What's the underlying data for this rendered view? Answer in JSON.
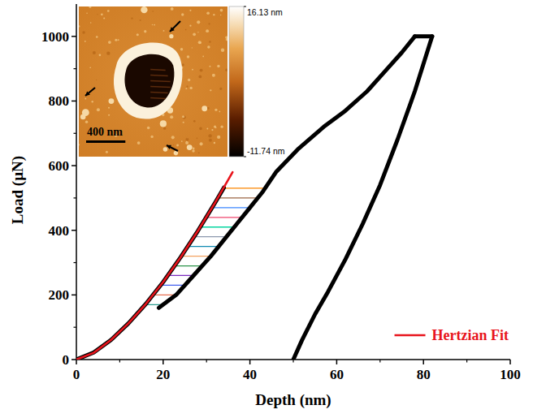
{
  "chart_data": {
    "type": "line",
    "x_label": "Depth (nm)",
    "y_label": "Load (µN)",
    "xlim": [
      0,
      100
    ],
    "xticks": [
      0,
      20,
      40,
      60,
      80,
      100
    ],
    "ylim": [
      0,
      1100
    ],
    "yticks": [
      0,
      200,
      400,
      600,
      800,
      1000
    ],
    "grid": false,
    "legend": "lower right",
    "series": [
      {
        "x": [
          0,
          4,
          8,
          12,
          16,
          20,
          24,
          28,
          32,
          34
        ],
        "values": [
          0,
          22,
          61,
          112,
          172,
          240,
          316,
          398,
          486,
          532
        ],
        "color": "#000000",
        "line_style": "solid"
      },
      {
        "x": [
          19,
          23,
          27,
          31,
          34,
          37,
          40,
          43,
          46,
          51,
          57,
          62,
          67,
          71,
          75,
          78
        ],
        "values": [
          160,
          200,
          260,
          320,
          370,
          420,
          470,
          520,
          580,
          650,
          720,
          770,
          830,
          890,
          950,
          1000
        ],
        "color": "#000000",
        "line_style": "solid"
      },
      {
        "x": [
          78,
          80,
          82
        ],
        "values": [
          1000,
          1000,
          1000
        ],
        "color": "#000000",
        "line_style": "solid"
      },
      {
        "x": [
          82,
          78,
          74,
          70,
          66,
          62,
          58,
          55,
          52,
          50
        ],
        "values": [
          1000,
          830,
          680,
          540,
          420,
          310,
          210,
          140,
          60,
          0
        ],
        "color": "#000000",
        "line_style": "solid"
      },
      {
        "name": "Hertzian Fit",
        "x": [
          0,
          4,
          8,
          12,
          16,
          20,
          24,
          28,
          32,
          36
        ],
        "values": [
          0,
          21,
          61,
          112,
          172,
          240,
          316,
          398,
          486,
          580
        ],
        "color": "#e8141c",
        "line_style": "solid"
      },
      {
        "x": [
          15.9,
          20
        ],
        "values": [
          170,
          170
        ],
        "color": "#2a9d8f",
        "line_style": "solid"
      },
      {
        "x": [
          17.7,
          23
        ],
        "values": [
          200,
          200
        ],
        "color": "#e76f51",
        "line_style": "solid"
      },
      {
        "x": [
          19.4,
          25
        ],
        "values": [
          230,
          230
        ],
        "color": "#4361ee",
        "line_style": "solid"
      },
      {
        "x": [
          21.1,
          27
        ],
        "values": [
          260,
          260
        ],
        "color": "#7b2cbf",
        "line_style": "solid"
      },
      {
        "x": [
          22.7,
          29
        ],
        "values": [
          290,
          290
        ],
        "color": "#2b9348",
        "line_style": "solid"
      },
      {
        "x": [
          24.3,
          31
        ],
        "values": [
          320,
          320
        ],
        "color": "#f4a261",
        "line_style": "solid"
      },
      {
        "x": [
          25.7,
          32.8
        ],
        "values": [
          350,
          350
        ],
        "color": "#118ab2",
        "line_style": "solid"
      },
      {
        "x": [
          27.2,
          34.6
        ],
        "values": [
          380,
          380
        ],
        "color": "#8d99ae",
        "line_style": "solid"
      },
      {
        "x": [
          28.6,
          36.4
        ],
        "values": [
          410,
          410
        ],
        "color": "#06d6a0",
        "line_style": "solid"
      },
      {
        "x": [
          30,
          38.2
        ],
        "values": [
          440,
          440
        ],
        "color": "#ef476f",
        "line_style": "solid"
      },
      {
        "x": [
          31.3,
          40
        ],
        "values": [
          470,
          470
        ],
        "color": "#3a86ff",
        "line_style": "solid"
      },
      {
        "x": [
          32.7,
          41.8
        ],
        "values": [
          500,
          500
        ],
        "color": "#9c6644",
        "line_style": "solid"
      },
      {
        "x": [
          34,
          43.5
        ],
        "values": [
          530,
          530
        ],
        "color": "#fb8500",
        "line_style": "solid"
      }
    ],
    "annotations": [
      "400 nm"
    ],
    "colorbar": {
      "range": [
        -11.74,
        16.13
      ],
      "ticks": [
        {
          "value": 16.13,
          "label": "16.13 nm"
        },
        {
          "value": -11.74,
          "label": "-11.74 nm"
        }
      ]
    }
  }
}
